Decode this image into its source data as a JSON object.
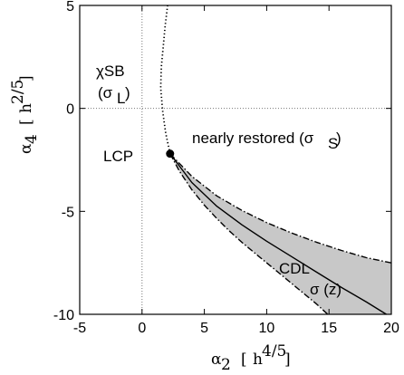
{
  "chart_data": {
    "type": "line",
    "title": "",
    "xlabel": {
      "symbol": "α",
      "sub": "2",
      "unit_base": "h",
      "unit_exp": "4/5"
    },
    "ylabel": {
      "symbol": "α",
      "sub": "4",
      "unit_base": "h",
      "unit_exp": "2/5"
    },
    "xlim": [
      -5,
      20
    ],
    "ylim": [
      -10,
      5
    ],
    "x_ticks": [
      "-5",
      "0",
      "5",
      "10",
      "15",
      "20"
    ],
    "y_ticks": [
      "5",
      "0",
      "-5",
      "-10"
    ],
    "grid": false,
    "reference_lines": [
      {
        "axis": "x",
        "value": 0,
        "style": "dotted"
      },
      {
        "axis": "y",
        "value": 0,
        "style": "dotted"
      }
    ],
    "series": [
      {
        "style": "dotted",
        "x": [
          2.25,
          1.9,
          1.65,
          1.5,
          1.55,
          1.7,
          1.85,
          2.05
        ],
        "y": [
          -2.2,
          -1.2,
          -0.1,
          1.0,
          2.0,
          3.0,
          4.0,
          5.0
        ]
      },
      {
        "style": "dash-dot",
        "x": [
          2.25,
          4,
          6,
          8,
          10,
          12,
          14,
          16,
          18,
          20
        ],
        "y": [
          -2.2,
          -3.3,
          -4.25,
          -4.95,
          -5.55,
          -6.05,
          -6.5,
          -6.9,
          -7.25,
          -7.5
        ]
      },
      {
        "style": "dash-dot",
        "x": [
          2.25,
          3,
          4,
          5,
          6,
          7,
          8,
          9,
          10,
          11,
          12,
          13,
          14,
          14.9
        ],
        "y": [
          -2.2,
          -3.05,
          -3.95,
          -4.7,
          -5.35,
          -5.95,
          -6.5,
          -7.0,
          -7.5,
          -8.0,
          -8.5,
          -9.0,
          -9.5,
          -10.0
        ]
      },
      {
        "style": "solid",
        "x": [
          2.25,
          4,
          6,
          8,
          10,
          12,
          14,
          16,
          18,
          19.6
        ],
        "y": [
          -2.2,
          -3.6,
          -4.75,
          -5.65,
          -6.45,
          -7.2,
          -7.95,
          -8.7,
          -9.4,
          -10.0
        ]
      }
    ],
    "points": [
      {
        "label": "LCP",
        "x": 2.25,
        "y": -2.2
      }
    ],
    "annotations": {
      "xsb_main": "χSB",
      "xsb_paren_open": "(σ",
      "xsb_sub": "L",
      "xsb_paren_close": ")",
      "lcp": "LCP",
      "restored_text": "nearly restored (σ",
      "restored_sub": "S",
      "restored_close": ")",
      "cdl": "CDL",
      "sigma_z": "σ (z)"
    },
    "colors": {
      "shade": "#c8c8c8",
      "line": "#000000"
    }
  }
}
